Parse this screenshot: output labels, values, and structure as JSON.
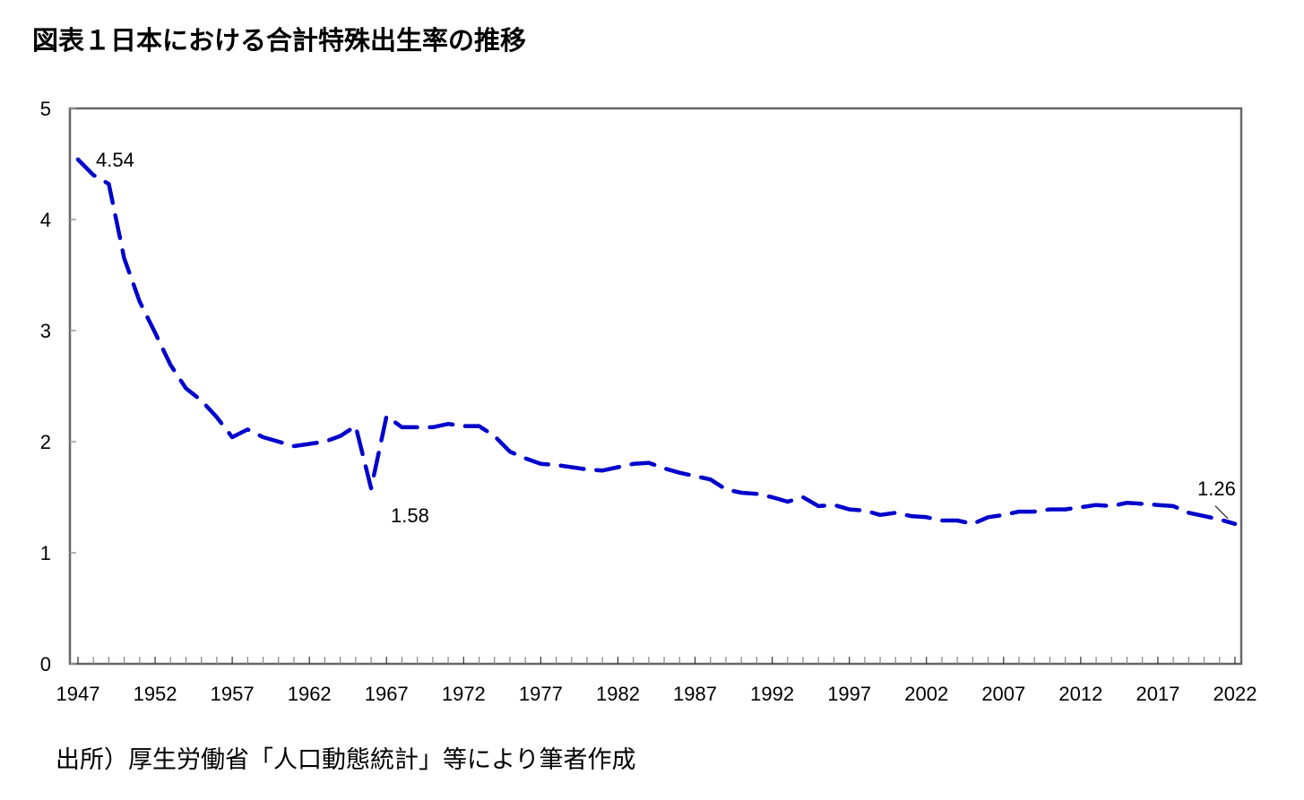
{
  "title": "図表１日本における合計特殊出生率の推移",
  "source": "出所）厚生労働省「人口動態統計」等により筆者作成",
  "colors": {
    "line": "#0000cc",
    "axis": "#666666",
    "text": "#000000"
  },
  "chart_data": {
    "type": "line",
    "title": "図表１日本における合計特殊出生率の推移",
    "xlabel": "",
    "ylabel": "",
    "ylim": [
      0,
      5
    ],
    "xlim": [
      1947,
      2022
    ],
    "grid": false,
    "legend": "none",
    "line_style": "dashed",
    "y_ticks": [
      "0",
      "1",
      "2",
      "3",
      "4",
      "5"
    ],
    "x_tick_labels": [
      "1947",
      "1952",
      "1957",
      "1962",
      "1967",
      "1972",
      "1977",
      "1982",
      "1987",
      "1992",
      "1997",
      "2002",
      "2007",
      "2012",
      "2017",
      "2022"
    ],
    "annotations": [
      {
        "x": 1947,
        "y": 4.54,
        "label": "4.54"
      },
      {
        "x": 1966,
        "y": 1.58,
        "label": "1.58"
      },
      {
        "x": 2022,
        "y": 1.26,
        "label": "1.26"
      }
    ],
    "series": [
      {
        "name": "合計特殊出生率",
        "x": [
          1947,
          1948,
          1949,
          1950,
          1951,
          1952,
          1953,
          1954,
          1955,
          1956,
          1957,
          1958,
          1959,
          1960,
          1961,
          1962,
          1963,
          1964,
          1965,
          1966,
          1967,
          1968,
          1969,
          1970,
          1971,
          1972,
          1973,
          1974,
          1975,
          1976,
          1977,
          1978,
          1979,
          1980,
          1981,
          1982,
          1983,
          1984,
          1985,
          1986,
          1987,
          1988,
          1989,
          1990,
          1991,
          1992,
          1993,
          1994,
          1995,
          1996,
          1997,
          1998,
          1999,
          2000,
          2001,
          2002,
          2003,
          2004,
          2005,
          2006,
          2007,
          2008,
          2009,
          2010,
          2011,
          2012,
          2013,
          2014,
          2015,
          2016,
          2017,
          2018,
          2019,
          2020,
          2021,
          2022
        ],
        "values": [
          4.54,
          4.4,
          4.32,
          3.65,
          3.26,
          2.98,
          2.69,
          2.48,
          2.37,
          2.22,
          2.04,
          2.11,
          2.04,
          2.0,
          1.96,
          1.98,
          2.0,
          2.05,
          2.14,
          1.58,
          2.23,
          2.13,
          2.13,
          2.13,
          2.16,
          2.14,
          2.14,
          2.05,
          1.91,
          1.85,
          1.8,
          1.79,
          1.77,
          1.75,
          1.74,
          1.77,
          1.8,
          1.81,
          1.76,
          1.72,
          1.69,
          1.66,
          1.57,
          1.54,
          1.53,
          1.5,
          1.46,
          1.5,
          1.42,
          1.43,
          1.39,
          1.38,
          1.34,
          1.36,
          1.33,
          1.32,
          1.29,
          1.29,
          1.26,
          1.32,
          1.34,
          1.37,
          1.37,
          1.39,
          1.39,
          1.41,
          1.43,
          1.42,
          1.45,
          1.44,
          1.43,
          1.42,
          1.36,
          1.33,
          1.3,
          1.26
        ]
      }
    ]
  }
}
